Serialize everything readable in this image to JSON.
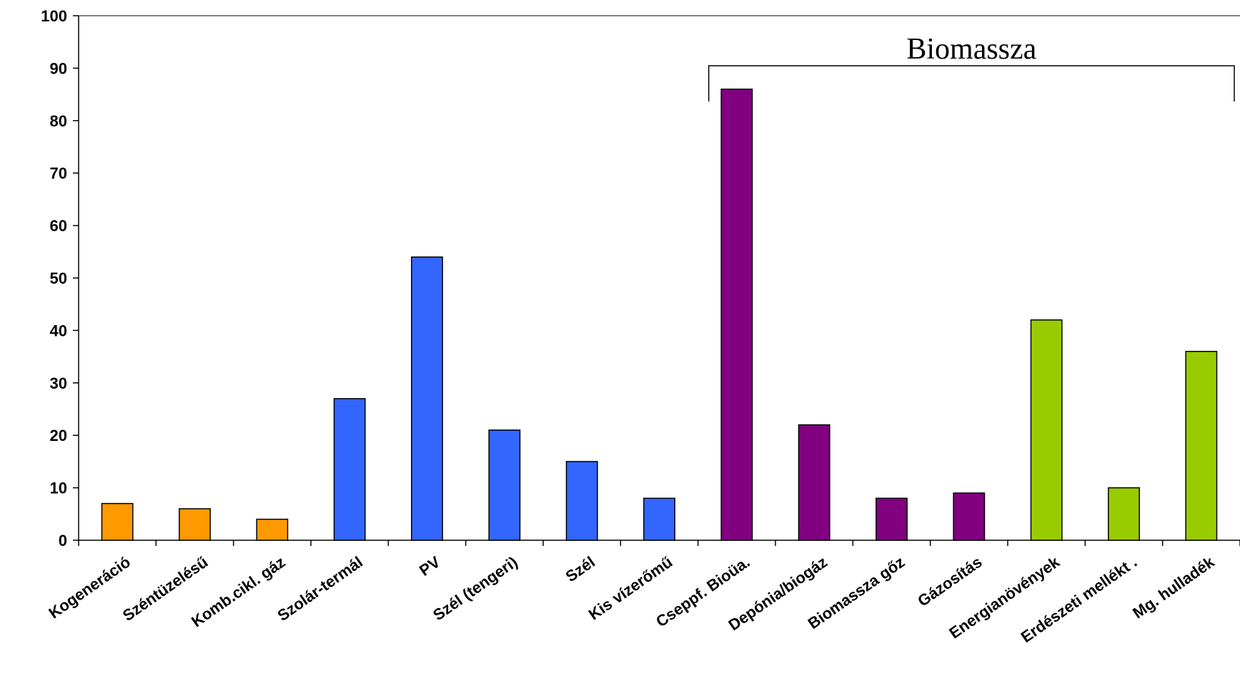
{
  "chart_data": {
    "type": "bar",
    "title": "",
    "xlabel": "",
    "ylabel": "",
    "ylim": [
      0,
      100
    ],
    "yticks": [
      0,
      10,
      20,
      30,
      40,
      50,
      60,
      70,
      80,
      90,
      100
    ],
    "grid": false,
    "categories": [
      "Kogeneráció",
      "Széntüzelésű",
      "Komb.cikl. gáz",
      "Szolár-termál",
      "PV",
      "Szél (tengeri)",
      "Szél",
      "Kis vízerőmű",
      "Cseppf. Bioüa.",
      "Depónia/biogáz",
      "Biomassza gőz",
      "Gázosítás",
      "Energianövények",
      "Erdészeti mellékt .",
      "Mg. hulladék"
    ],
    "values": [
      7,
      6,
      4,
      27,
      54,
      21,
      15,
      8,
      86,
      22,
      8,
      9,
      42,
      10,
      36
    ],
    "bar_colors": [
      "#ff9900",
      "#ff9900",
      "#ff9900",
      "#3366ff",
      "#3366ff",
      "#3366ff",
      "#3366ff",
      "#3366ff",
      "#800080",
      "#800080",
      "#800080",
      "#800080",
      "#99cc00",
      "#99cc00",
      "#99cc00"
    ],
    "annotations": [
      {
        "text": "Biomassza",
        "from_category": 8,
        "to_category": 14
      }
    ]
  }
}
